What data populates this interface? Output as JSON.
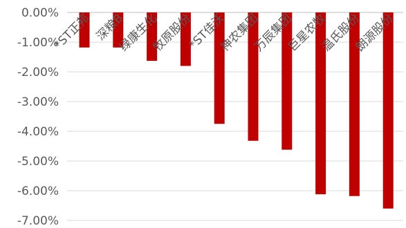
{
  "chart_data": {
    "type": "bar",
    "title": "",
    "xlabel": "",
    "ylabel": "",
    "categories": [
      "*ST正邦",
      "深粮B",
      "绿康生化",
      "牧原股份",
      "*ST佳沃",
      "神农集团",
      "万辰集团",
      "巨星农牧",
      "温氏股份",
      "朗源股份"
    ],
    "values": [
      -1.18,
      -1.18,
      -1.63,
      -1.8,
      -3.75,
      -4.32,
      -4.62,
      -6.12,
      -6.18,
      -6.6
    ],
    "ylim": [
      -7.0,
      0.0
    ],
    "yticks": [
      0,
      -1,
      -2,
      -3,
      -4,
      -5,
      -6,
      -7
    ],
    "ytick_labels": [
      "0.00%",
      "-1.00%",
      "-2.00%",
      "-3.00%",
      "-4.00%",
      "-5.00%",
      "-6.00%",
      "-7.00%"
    ],
    "grid": true,
    "legend": "none",
    "bar_color": "#c00000"
  }
}
